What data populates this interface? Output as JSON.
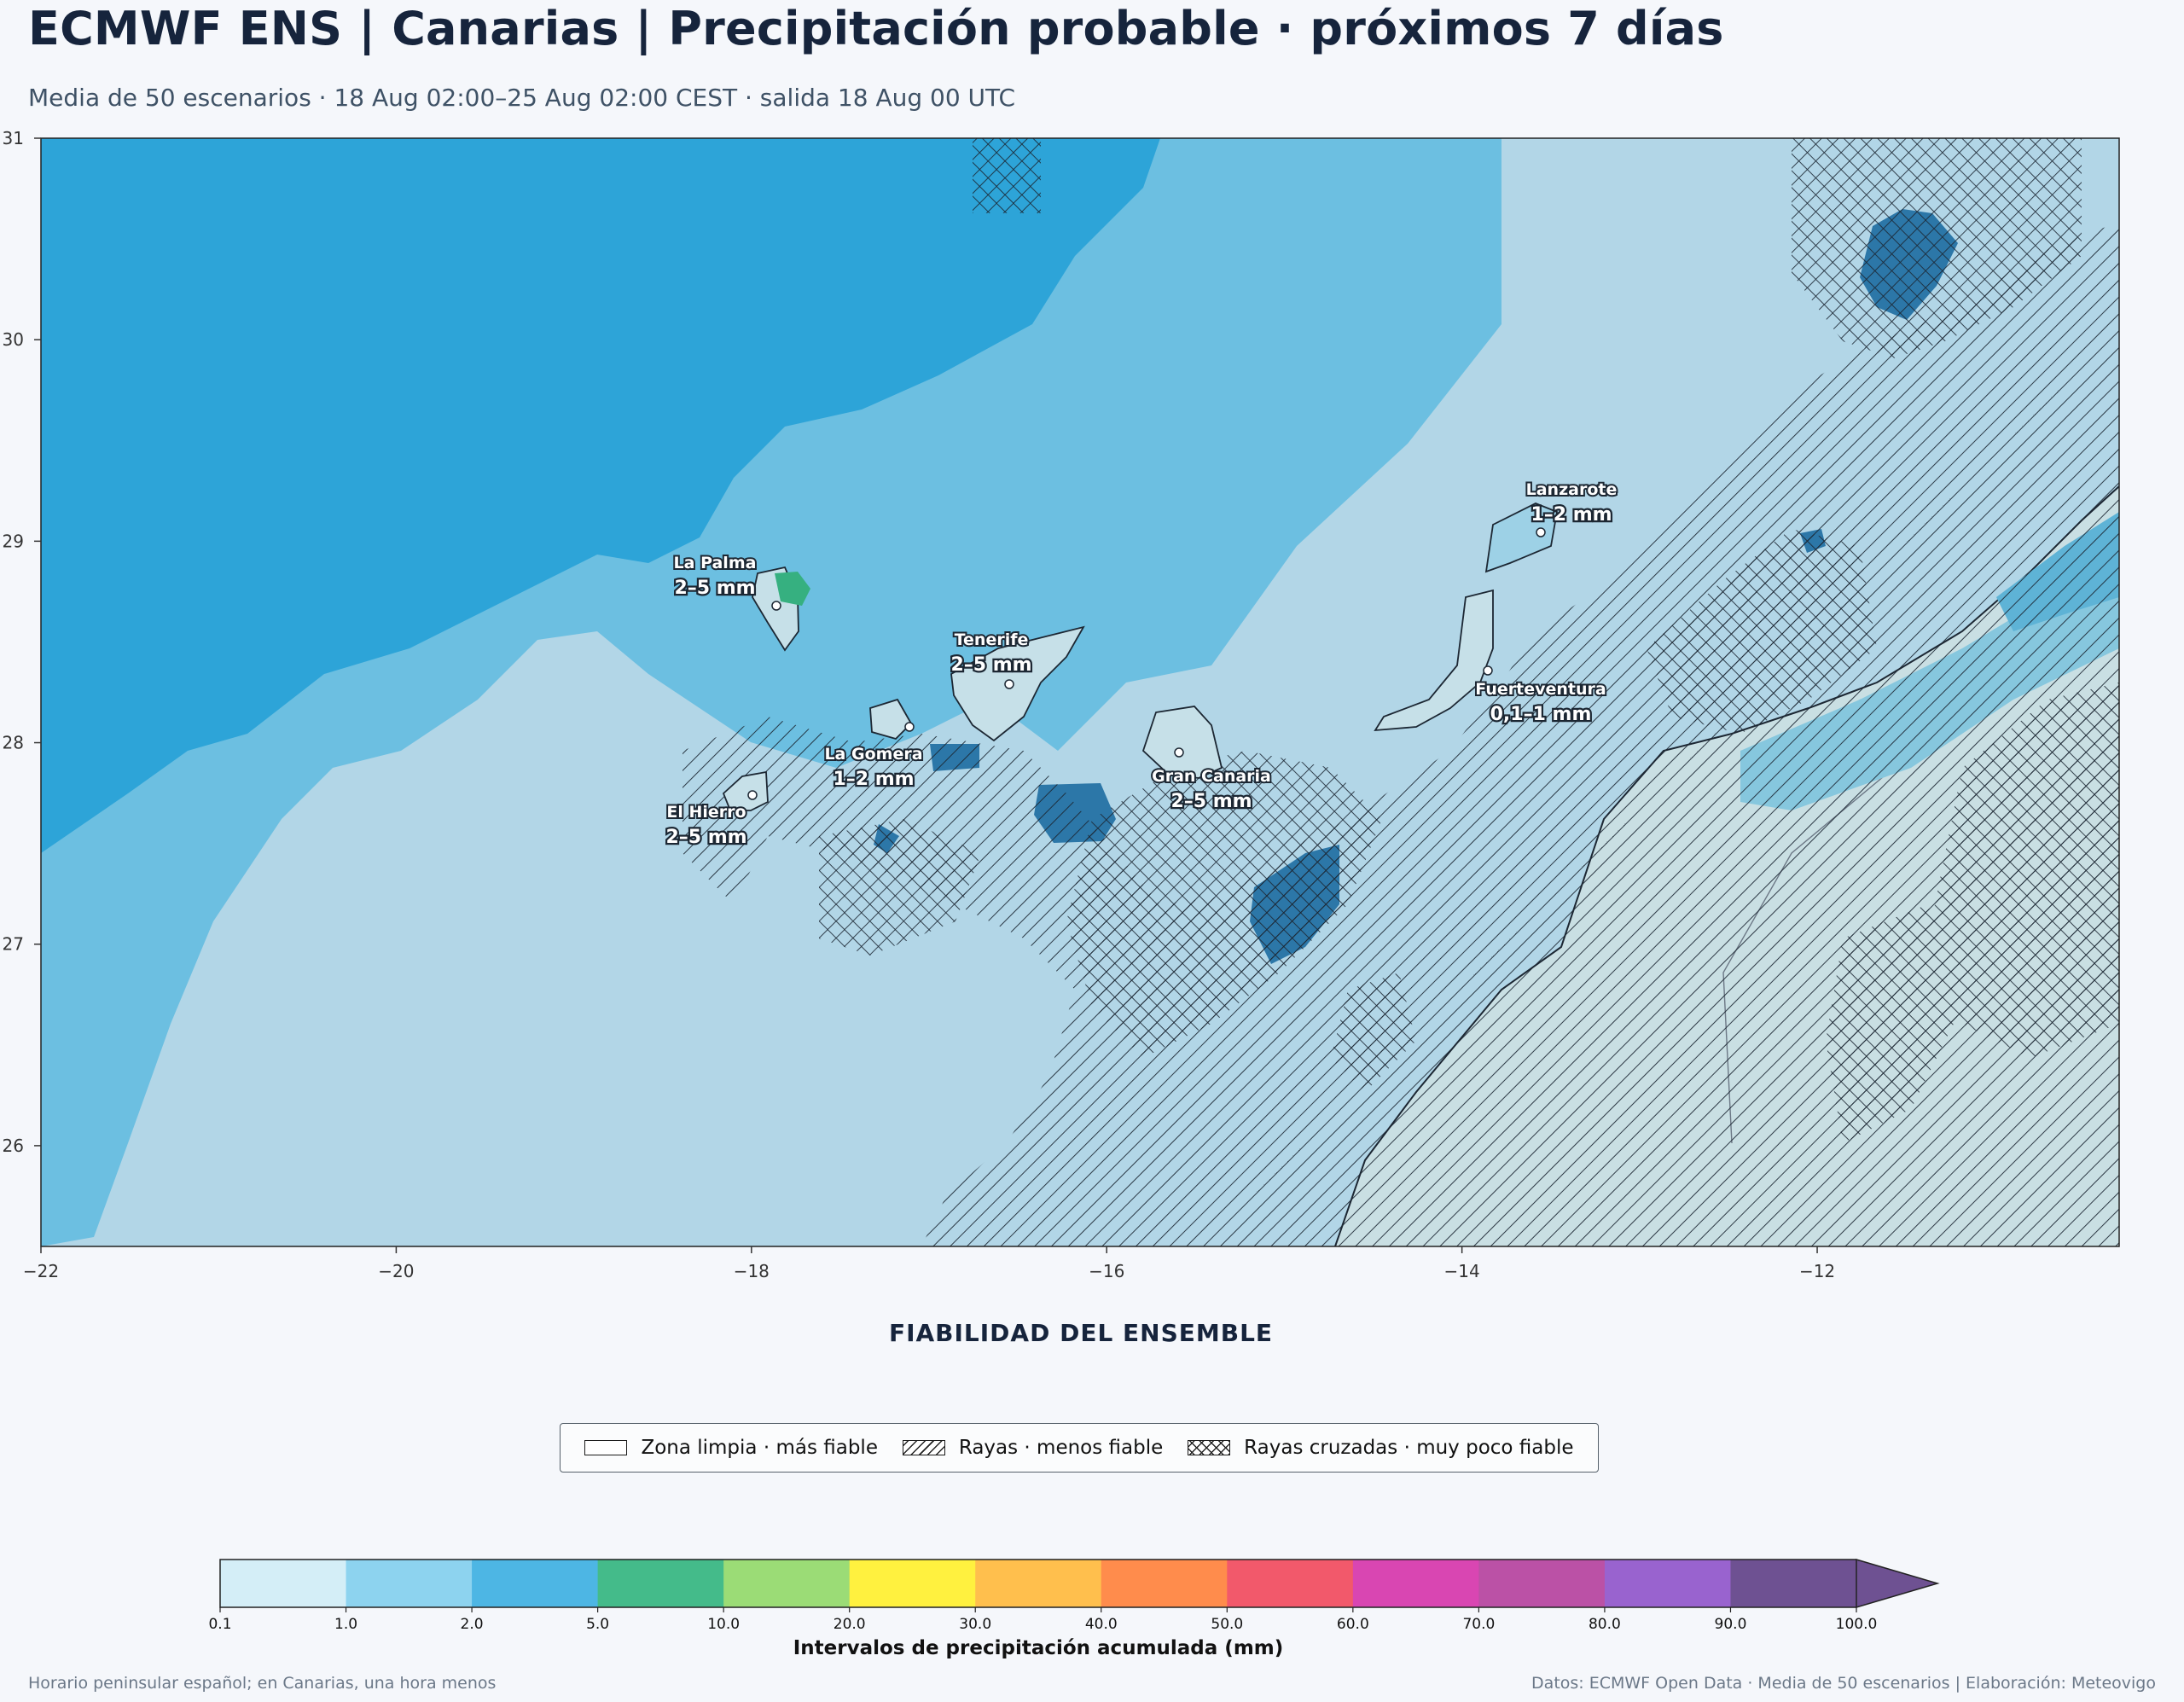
{
  "title": "ECMWF ENS | Canarias | Precipitación probable · próximos 7 días",
  "subtitle": "Media de 50 escenarios · 18 Aug 02:00–25 Aug 02:00 CEST · salida 18 Aug 00 UTC",
  "map": {
    "lon_ticks": [
      "−22",
      "−20",
      "−18",
      "−16",
      "−14",
      "−12"
    ],
    "lat_ticks": [
      "26",
      "27",
      "28",
      "29",
      "30",
      "31"
    ],
    "lon_range": [
      -22,
      -10.3
    ],
    "lat_range": [
      25.5,
      31
    ],
    "islands": [
      {
        "name": "La Palma",
        "value": "2–5 mm"
      },
      {
        "name": "Tenerife",
        "value": "2–5 mm"
      },
      {
        "name": "La Gomera",
        "value": "1–2 mm"
      },
      {
        "name": "El Hierro",
        "value": "2–5 mm"
      },
      {
        "name": "Gran Canaria",
        "value": "2–5 mm"
      },
      {
        "name": "Lanzarote",
        "value": "1–2 mm"
      },
      {
        "name": "Fuerteventura",
        "value": "0,1–1 mm"
      }
    ]
  },
  "reliability": {
    "title": "FIABILIDAD DEL ENSEMBLE",
    "items": [
      {
        "label": "Zona limpia · más fiable"
      },
      {
        "label": "Rayas · menos fiable"
      },
      {
        "label": "Rayas cruzadas · muy poco fiable"
      }
    ]
  },
  "colorbar": {
    "ticks": [
      "0.1",
      "1.0",
      "2.0",
      "5.0",
      "10.0",
      "20.0",
      "30.0",
      "40.0",
      "50.0",
      "60.0",
      "70.0",
      "80.0",
      "90.0",
      "100.0"
    ],
    "colors": [
      "#d4eef7",
      "#8dd3ef",
      "#4db6e4",
      "#44bb8a",
      "#9bdc76",
      "#fff13f",
      "#ffbf4d",
      "#ff8c4c",
      "#f2596b",
      "#d946b2",
      "#bb51a6",
      "#9963cf",
      "#6e5192"
    ],
    "label": "Intervalos de precipitación acumulada (mm)"
  },
  "footer": {
    "left": "Horario peninsular español; en Canarias, una hora menos",
    "right": "Datos: ECMWF Open Data · Media de 50 escenarios | Elaboración: Meteovigo"
  }
}
